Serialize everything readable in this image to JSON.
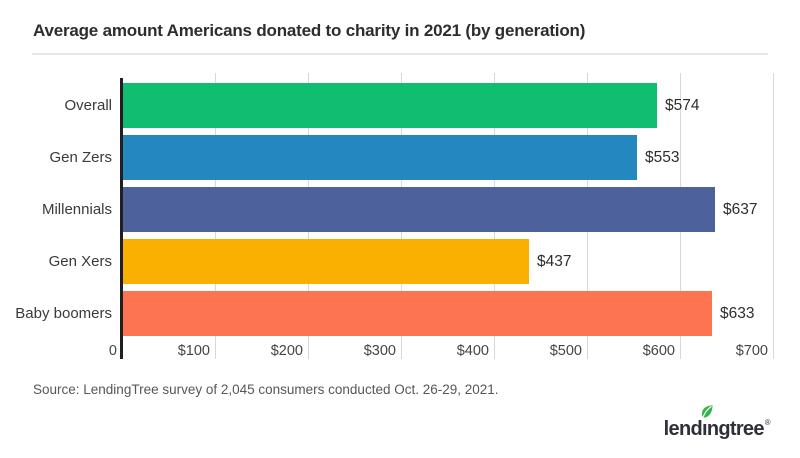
{
  "title": "Average amount Americans donated to charity in 2021 (by generation)",
  "source_note": "Source: LendingTree survey of 2,045 consumers conducted Oct. 26-29, 2021.",
  "logo": {
    "text_pre": "lend",
    "text_i": "ı",
    "text_post": "ngtree",
    "reg_mark": "®",
    "leaf_color": "#33b54a",
    "leaf_vein_color": "#ffffff",
    "text_color": "#2e3138"
  },
  "colors": {
    "background": "#ffffff",
    "title": "#2d2d2d",
    "divider": "#e6e6e6",
    "grid": "#d8d8d8",
    "axis": "#1f1f1f",
    "label": "#3a3a3a",
    "value": "#2e2e2e",
    "tick": "#444444",
    "source": "#56575b",
    "logo": "#2e3138"
  },
  "chart_data": {
    "type": "bar",
    "orientation": "horizontal",
    "title": "Average amount Americans donated to charity in 2021 (by generation)",
    "categories": [
      "Overall",
      "Gen Zers",
      "Millennials",
      "Gen Xers",
      "Baby boomers"
    ],
    "values": [
      574,
      553,
      637,
      437,
      633
    ],
    "value_labels": [
      "$574",
      "$553",
      "$637",
      "$437",
      "$633"
    ],
    "bar_colors": [
      "#10bd71",
      "#2487c0",
      "#4d619d",
      "#f9b000",
      "#fd7450"
    ],
    "x_ticks": [
      0,
      100,
      200,
      300,
      400,
      500,
      600,
      700
    ],
    "x_tick_labels": [
      "0",
      "$100",
      "$200",
      "$300",
      "$400",
      "$500",
      "$600",
      "$700"
    ],
    "xlim": [
      0,
      700
    ],
    "grid": true,
    "legend": false
  }
}
